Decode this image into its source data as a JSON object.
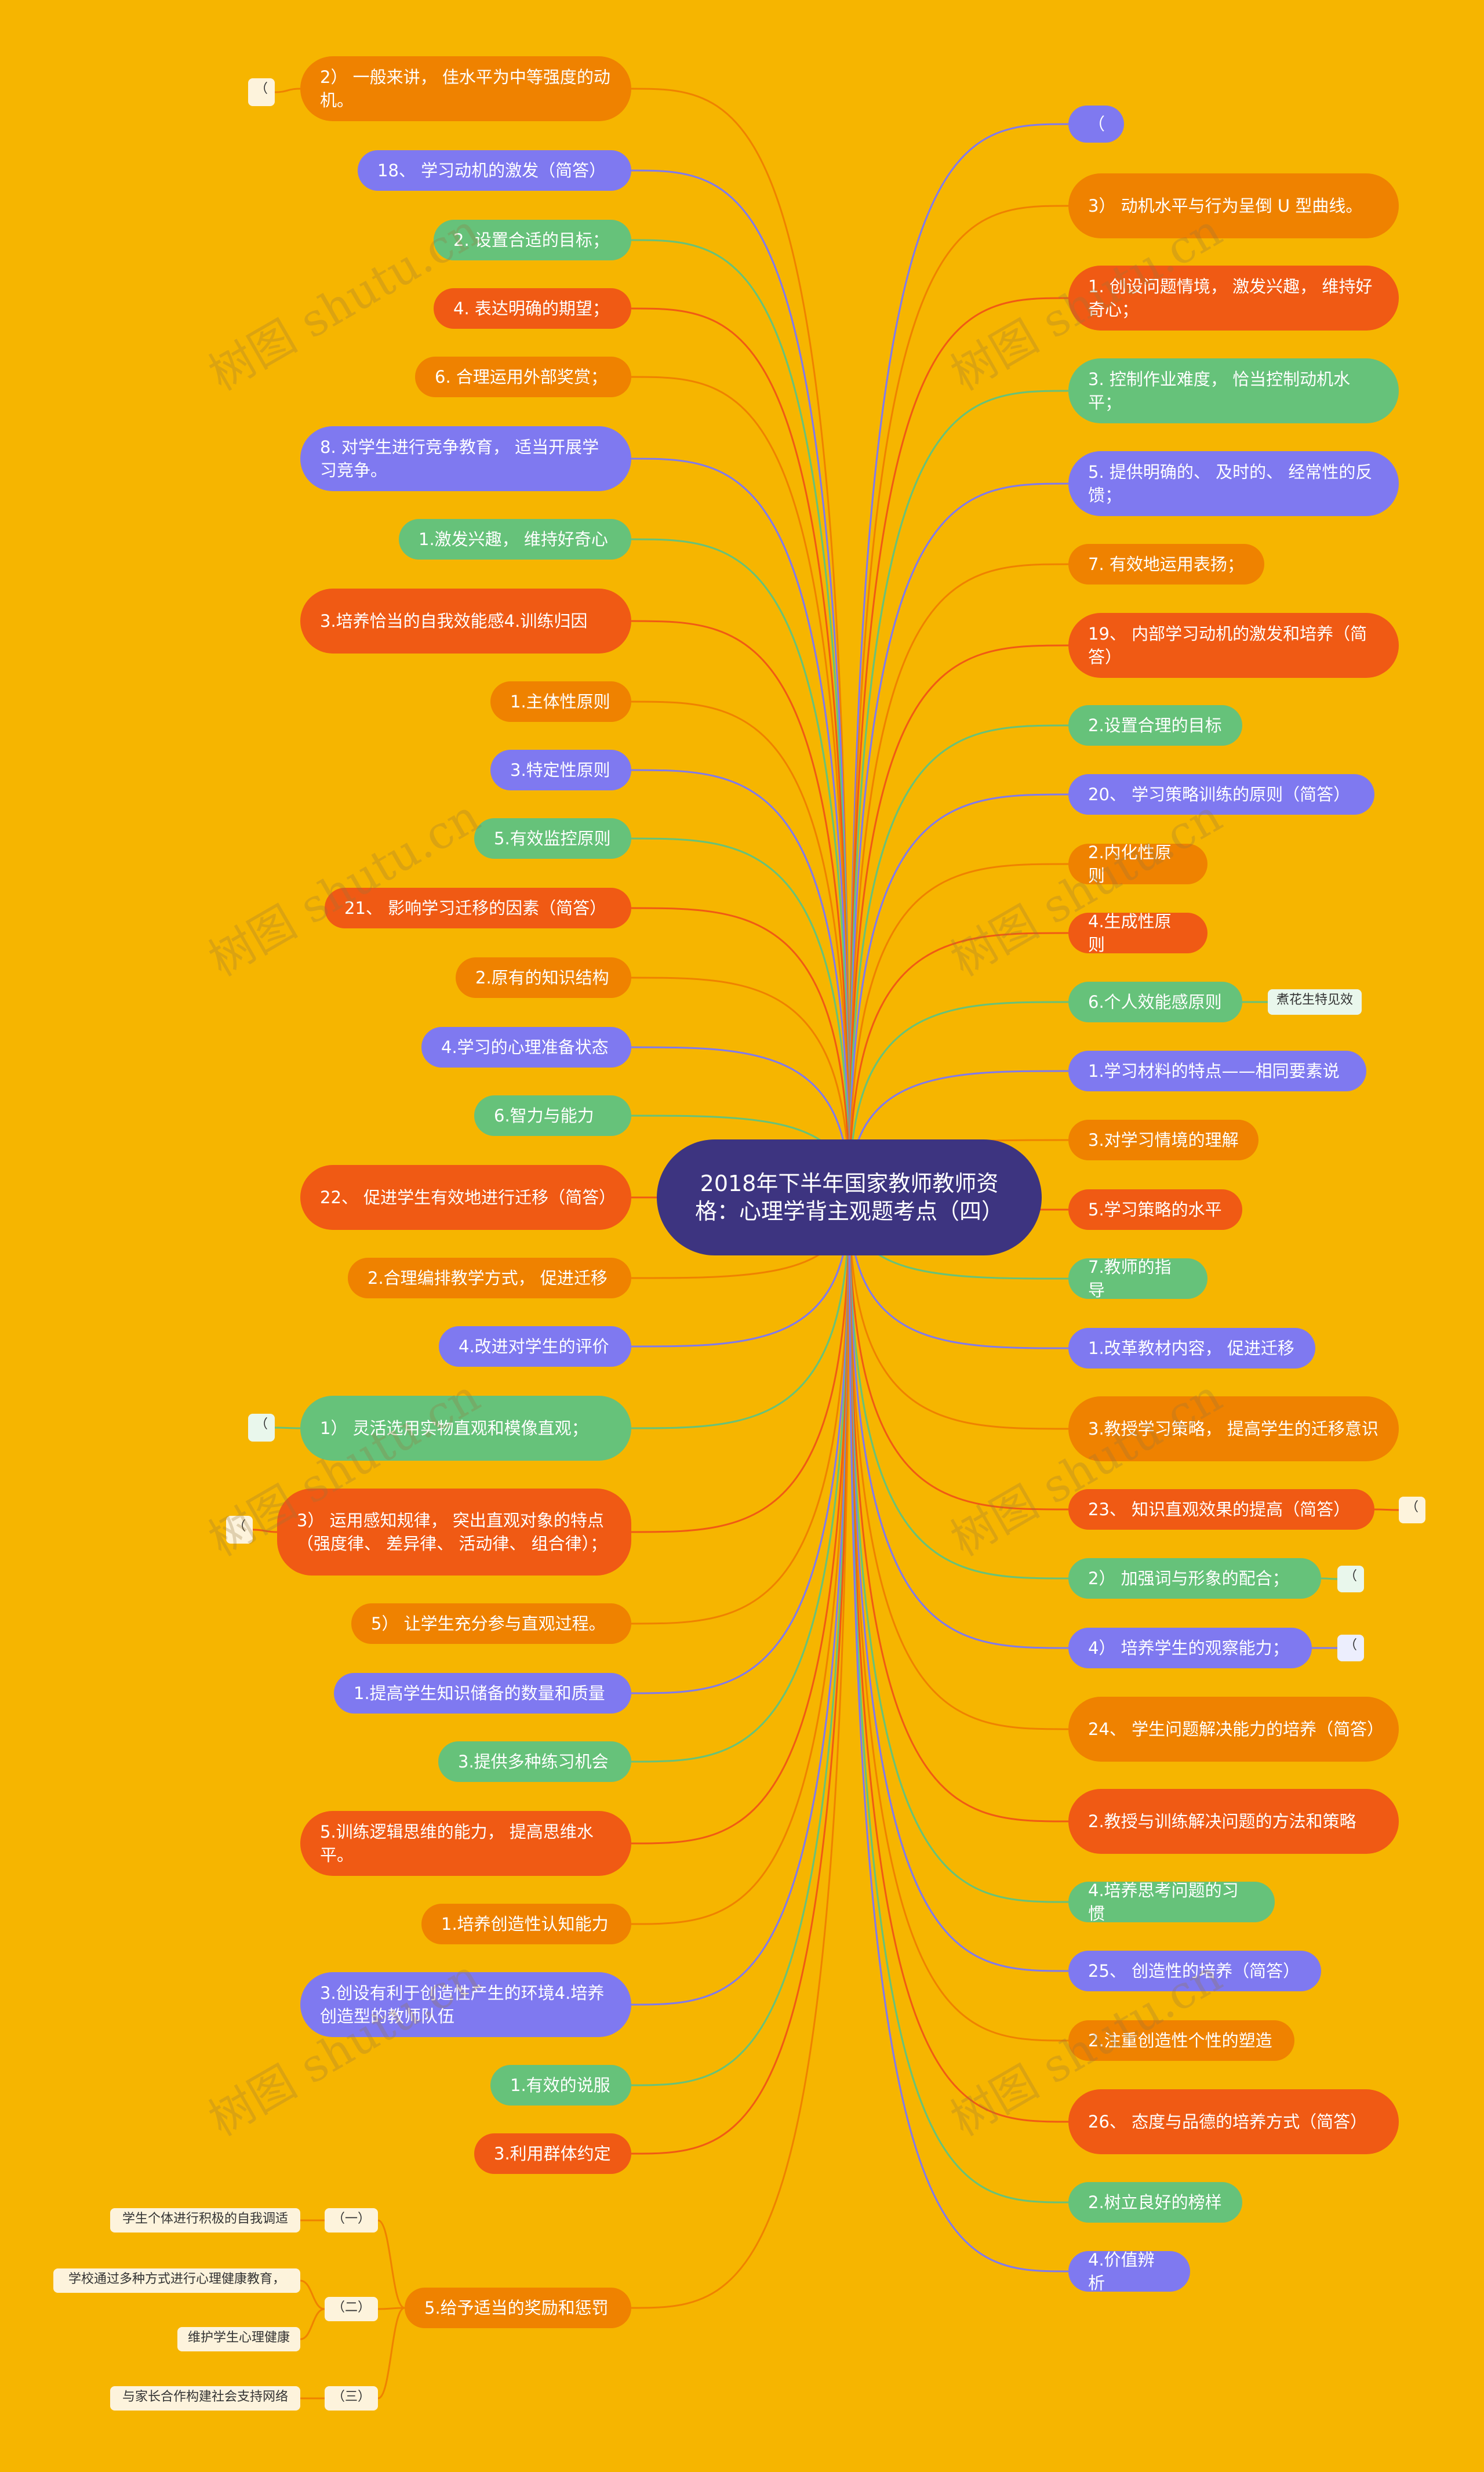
{
  "center_title": "2018年下半年国家教师教师资格：心理学背主观题考点（四）",
  "watermark": "树图 shutu.cn",
  "left_nodes": [
    "2） 一般来讲， 佳水平为中等强度的动机。",
    "18、 学习动机的激发（简答）",
    "2. 设置合适的目标；",
    "4. 表达明确的期望；",
    "6. 合理运用外部奖赏；",
    "8. 对学生进行竞争教育， 适当开展学习竞争。",
    "1.激发兴趣， 维持好奇心",
    "3.培养恰当的自我效能感4.训练归因",
    "1.主体性原则",
    "3.特定性原则",
    "5.有效监控原则",
    "21、 影响学习迁移的因素（简答）",
    "2.原有的知识结构",
    "4.学习的心理准备状态",
    "6.智力与能力",
    "22、 促进学生有效地进行迁移（简答）",
    "2.合理编排教学方式， 促进迁移",
    "4.改进对学生的评价",
    "1） 灵活选用实物直观和模像直观；",
    "3） 运用感知规律， 突出直观对象的特点（强度律、 差异律、 活动律、 组合律）；",
    "5） 让学生充分参与直观过程。",
    "1.提高学生知识储备的数量和质量",
    "3.提供多种练习机会",
    "5.训练逻辑思维的能力， 提高思维水平。",
    "1.培养创造性认知能力",
    "3.创设有利于创造性产生的环境4.培养创造型的教师队伍",
    "1.有效的说服",
    "3.利用群体约定",
    "5.给予适当的奖励和惩罚"
  ],
  "right_nodes": [
    "（",
    "3） 动机水平与行为呈倒 U 型曲线。",
    "1. 创设问题情境， 激发兴趣， 维持好奇心；",
    "3. 控制作业难度， 恰当控制动机水平；",
    "5. 提供明确的、 及时的、 经常性的反馈；",
    "7. 有效地运用表扬；",
    "19、 内部学习动机的激发和培养（简答）",
    "2.设置合理的目标",
    "20、 学习策略训练的原则（简答）",
    "2.内化性原则",
    "4.生成性原则",
    "6.个人效能感原则",
    "1.学习材料的特点——相同要素说",
    "3.对学习情境的理解",
    "5.学习策略的水平",
    "7.教师的指导",
    "1.改革教材内容， 促进迁移",
    "3.教授学习策略， 提高学生的迁移意识",
    "23、 知识直观效果的提高（简答）",
    "2） 加强词与形象的配合；",
    "4） 培养学生的观察能力；",
    "24、 学生问题解决能力的培养（简答）",
    "2.教授与训练解决问题的方法和策略",
    "4.培养思考问题的习惯",
    "25、 创造性的培养（简答）",
    "2.注重创造性个性的塑造",
    "26、 态度与品德的培养方式（简答）",
    "2.树立良好的榜样",
    "4.价值辨析"
  ],
  "tags": [
    "（",
    "（",
    "（",
    "煮花生特见效",
    "（",
    "（",
    "（",
    "（一）",
    "（二）",
    "（三）",
    "学生个体进行积极的自我调适",
    "学校通过多种方式进行心理健康教育，",
    "维护学生心理健康",
    "与家长合作构建社会支持网络"
  ],
  "colors": {
    "background": "#f6b500",
    "center": "#3d3480",
    "orange": "#ef8200",
    "red": "#f05a14",
    "green": "#66c27a",
    "blue": "#7f79f0"
  }
}
